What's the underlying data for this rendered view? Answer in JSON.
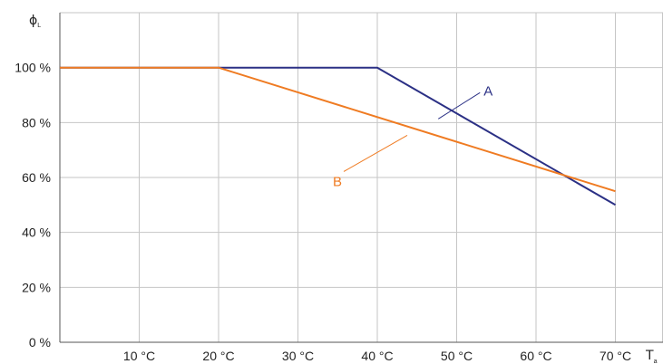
{
  "chart_data": {
    "type": "line",
    "title": "",
    "ylabel": {
      "symbol": "ϕ",
      "subscript": "L"
    },
    "xlabel": {
      "symbol": "T",
      "subscript": "a"
    },
    "x_tick_values": [
      10,
      20,
      30,
      40,
      50,
      60,
      70
    ],
    "x_tick_labels": [
      "10 °C",
      "20 °C",
      "30 °C",
      "40 °C",
      "50 °C",
      "60 °C",
      "70 °C"
    ],
    "y_tick_values": [
      0,
      20,
      40,
      60,
      80,
      100
    ],
    "y_tick_labels": [
      "0 %",
      "20 %",
      "40 %",
      "60 %",
      "80 %",
      "100 %"
    ],
    "xlim": [
      0,
      76
    ],
    "ylim": [
      0,
      120
    ],
    "grid": true,
    "legend": "none",
    "series": [
      {
        "name": "A",
        "color": "#2b3085",
        "x": [
          0,
          40,
          70
        ],
        "y": [
          100,
          100,
          50
        ],
        "label_anchor": {
          "x": 47,
          "y": 81
        }
      },
      {
        "name": "B",
        "color": "#ef7b22",
        "x": [
          0,
          20,
          70
        ],
        "y": [
          100,
          100,
          55
        ],
        "label_anchor": {
          "x": 44,
          "y": 76
        }
      }
    ]
  }
}
